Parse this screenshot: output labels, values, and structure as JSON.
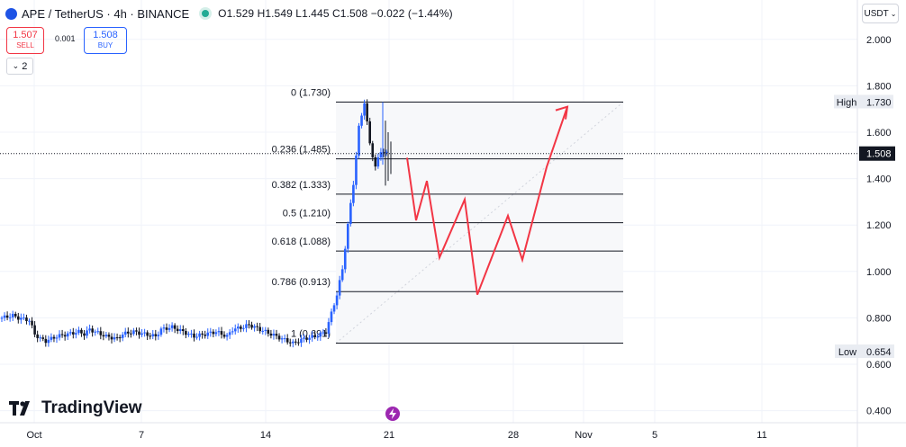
{
  "header": {
    "symbol": "APE / TetherUS · 4h · BINANCE",
    "ohlc": "O1.529 H1.549 L1.445 C1.508 −0.022 (−1.44%)"
  },
  "trade": {
    "sell_price": "1.507",
    "sell_label": "SELL",
    "spread": "0.001",
    "buy_price": "1.508",
    "buy_label": "BUY"
  },
  "indicators_toggle": "2",
  "currency_button": "USDT",
  "branding": "TradingView",
  "colors": {
    "up": "#2962ff",
    "down": "#131722",
    "projection": "#f23645",
    "fib_line": "#131722",
    "grid": "#f0f3fa"
  },
  "chart_data": {
    "type": "candlestick",
    "symbol": "APE/USDT",
    "timeframe": "4h",
    "y_axis": {
      "ticks": [
        "2.000",
        "1.800",
        "1.600",
        "1.400",
        "1.200",
        "1.000",
        "0.800",
        "0.600",
        "0.400"
      ],
      "ylim": [
        0.38,
        2.08
      ]
    },
    "x_axis": {
      "ticks": [
        "Oct",
        "7",
        "14",
        "21",
        "28",
        "Nov",
        "5",
        "11"
      ]
    },
    "price_labels": [
      {
        "label": "High",
        "value": "1.730"
      },
      {
        "label": "",
        "value": "1.508"
      },
      {
        "label": "Low",
        "value": "0.654"
      }
    ],
    "fibonacci": {
      "levels": [
        {
          "label": "0 (1.730)",
          "price": 1.73
        },
        {
          "label": "0.236 (1.485)",
          "price": 1.485
        },
        {
          "label": "0.382 (1.333)",
          "price": 1.333
        },
        {
          "label": "0.5 (1.210)",
          "price": 1.21
        },
        {
          "label": "0.618 (1.088)",
          "price": 1.088
        },
        {
          "label": "0.786 (0.913)",
          "price": 0.913
        },
        {
          "label": "1 (0.691)",
          "price": 0.691
        }
      ]
    },
    "price_path": [
      [
        0,
        0.8
      ],
      [
        2,
        0.81
      ],
      [
        3,
        0.8
      ],
      [
        5,
        0.79
      ],
      [
        6,
        0.73
      ],
      [
        7,
        0.71
      ],
      [
        8,
        0.7
      ],
      [
        10,
        0.72
      ],
      [
        12,
        0.73
      ],
      [
        14,
        0.74
      ],
      [
        15,
        0.73
      ],
      [
        16,
        0.75
      ],
      [
        17,
        0.74
      ],
      [
        19,
        0.72
      ],
      [
        21,
        0.71
      ],
      [
        22,
        0.73
      ],
      [
        24,
        0.74
      ],
      [
        26,
        0.73
      ],
      [
        28,
        0.72
      ],
      [
        29,
        0.75
      ],
      [
        31,
        0.76
      ],
      [
        32,
        0.75
      ],
      [
        33,
        0.74
      ],
      [
        35,
        0.72
      ],
      [
        37,
        0.73
      ],
      [
        39,
        0.74
      ],
      [
        41,
        0.72
      ],
      [
        42,
        0.75
      ],
      [
        44,
        0.76
      ],
      [
        45,
        0.77
      ],
      [
        47,
        0.75
      ],
      [
        49,
        0.73
      ],
      [
        51,
        0.71
      ],
      [
        53,
        0.69
      ],
      [
        55,
        0.71
      ],
      [
        57,
        0.72
      ],
      [
        59,
        0.74
      ],
      [
        61,
        0.9
      ],
      [
        62,
        1.01
      ],
      [
        63,
        1.2
      ],
      [
        64,
        1.38
      ],
      [
        65,
        1.62
      ],
      [
        66,
        1.73
      ],
      [
        67,
        1.55
      ],
      [
        68,
        1.45
      ],
      [
        69,
        1.52
      ],
      [
        70,
        1.508
      ]
    ],
    "projection_path": [
      1.49,
      1.22,
      1.39,
      1.06,
      1.31,
      0.9,
      1.24,
      1.05,
      1.45,
      1.71
    ]
  }
}
